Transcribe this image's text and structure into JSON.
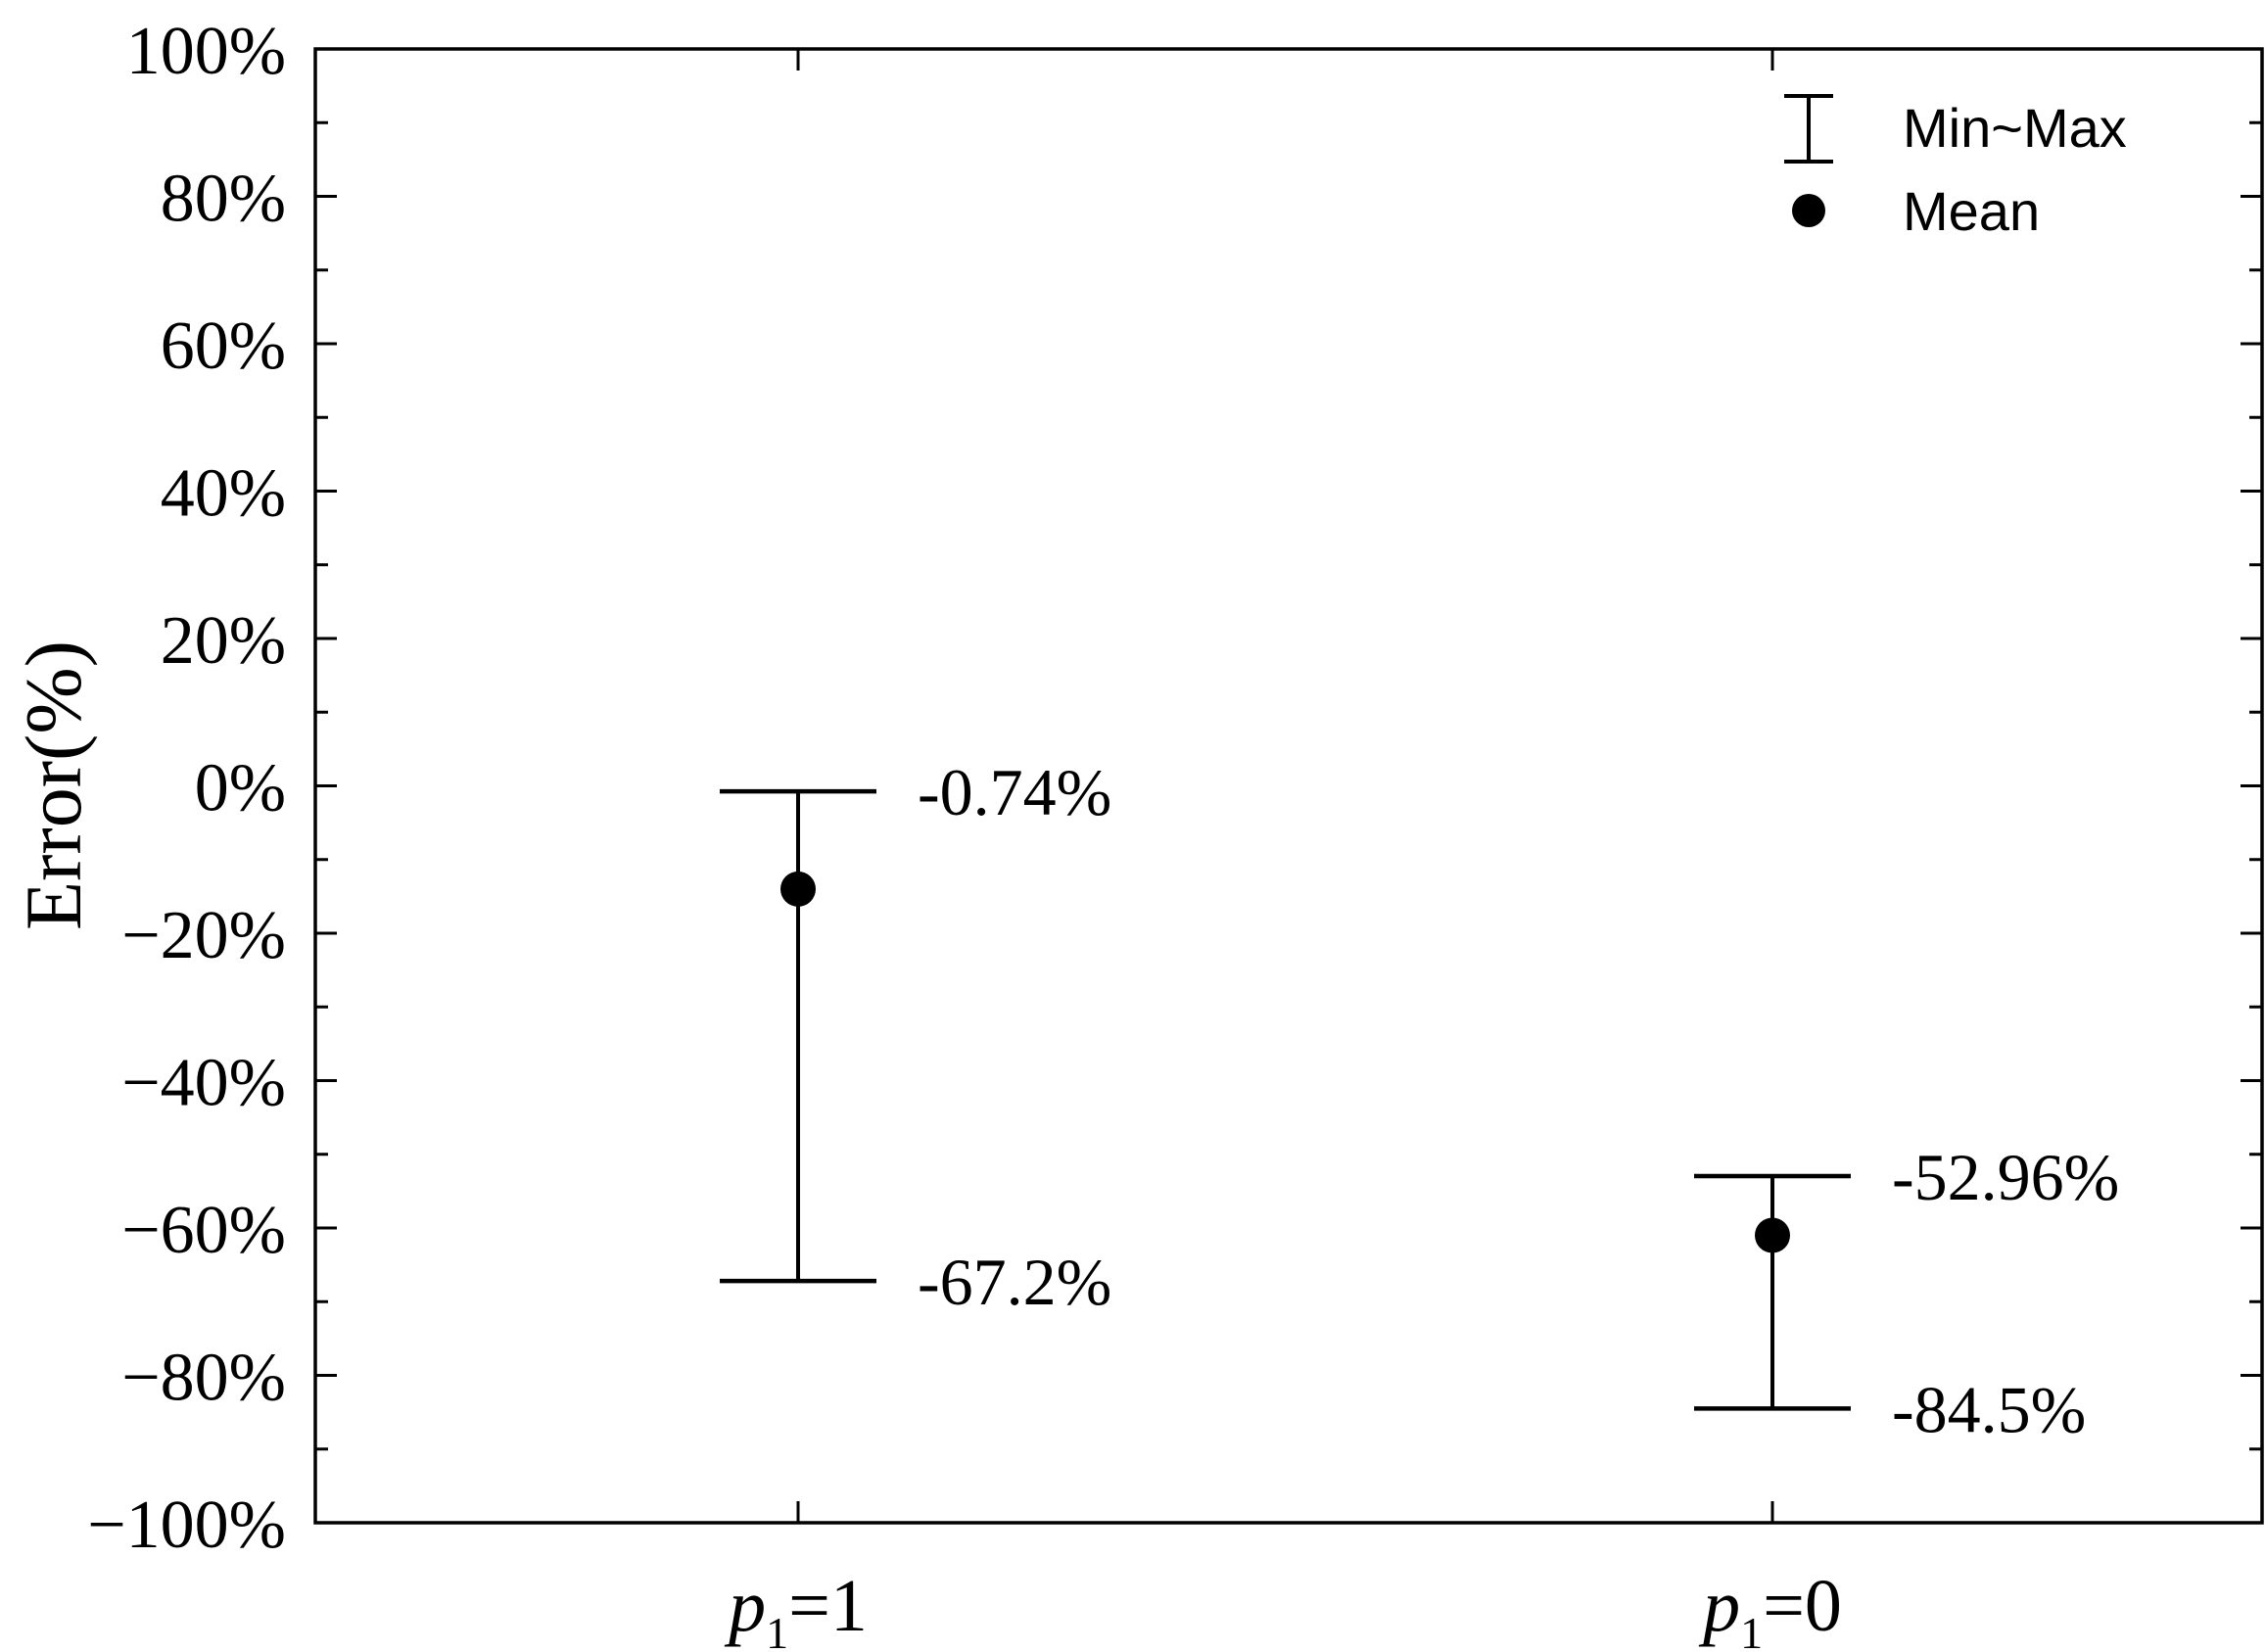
{
  "chart_data": {
    "type": "scatter",
    "ylabel": "Error(%)",
    "ylim": [
      -100,
      100
    ],
    "y_major_ticks": [
      100,
      80,
      60,
      40,
      20,
      0,
      -20,
      -40,
      -60,
      -80,
      -100
    ],
    "y_tick_labels": [
      "100%",
      "80%",
      "60%",
      "40%",
      "20%",
      "0%",
      "−20%",
      "−40%",
      "−60%",
      "−80%",
      "−100%"
    ],
    "y_minor_step": 10,
    "categories": [
      {
        "italic": "p",
        "sub": "1",
        "rest": "=1"
      },
      {
        "italic": "p",
        "sub": "1",
        "rest": "=0"
      }
    ],
    "series": [
      {
        "name": "Mean",
        "values": [
          -14,
          -61
        ]
      },
      {
        "name": "Min~Max",
        "max": [
          -0.74,
          -52.96
        ],
        "min": [
          -67.2,
          -84.5
        ],
        "max_labels": [
          "-0.74%",
          "-52.96%"
        ],
        "min_labels": [
          "-67.2%",
          "-84.5%"
        ]
      }
    ],
    "legend": {
      "placement": "top-right",
      "items": [
        {
          "marker": "errorbar-icon",
          "label": "Min~Max"
        },
        {
          "marker": "circle-icon",
          "label": "Mean"
        }
      ]
    },
    "grid": false,
    "colors": {
      "marks": "#000000",
      "background": "#ffffff"
    }
  }
}
